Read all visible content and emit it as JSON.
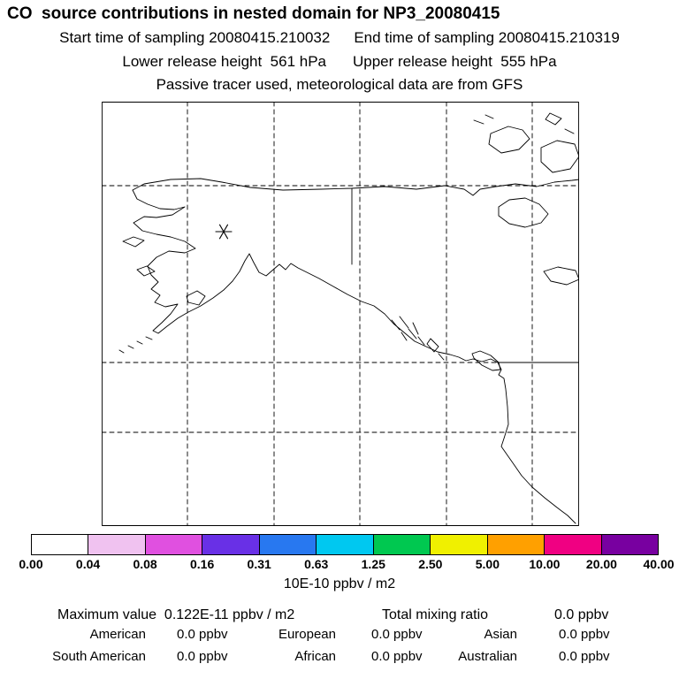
{
  "header": {
    "title": "CO  source contributions in nested domain for NP3_20080415",
    "line2_left": "Start time of sampling 20080415.210032",
    "line2_right": "End time of sampling 20080415.210319",
    "line3_left": "Lower release height  561 hPa",
    "line3_right": "Upper release height  555 hPa",
    "line4": "Passive tracer used, meteorological data are from GFS"
  },
  "map": {
    "marker": "asterisk at sampling/release location over interior Alaska"
  },
  "colorbar": {
    "colors": [
      "#ffffff",
      "#f0c2f0",
      "#e050e0",
      "#6930e6",
      "#2878f0",
      "#00c8f0",
      "#00c850",
      "#f0f000",
      "#ffa000",
      "#f00082",
      "#7800a0"
    ],
    "ticks": [
      "0.00",
      "0.04",
      "0.08",
      "0.16",
      "0.31",
      "0.63",
      "1.25",
      "2.50",
      "5.00",
      "10.00",
      "20.00",
      "40.00"
    ],
    "units": "10E-10 ppbv / m2"
  },
  "stats": {
    "maximum_label": "Maximum value  0.122E-11 ppbv / m2",
    "total_label": "Total mixing ratio",
    "total_value": "0.0 ppbv",
    "regions": [
      {
        "label": "American",
        "value": "0.0 ppbv"
      },
      {
        "label": "European",
        "value": "0.0 ppbv"
      },
      {
        "label": "Asian",
        "value": "0.0 ppbv"
      },
      {
        "label": "South American",
        "value": "0.0 ppbv"
      },
      {
        "label": "African",
        "value": "0.0 ppbv"
      },
      {
        "label": "Australian",
        "value": "0.0 ppbv"
      }
    ]
  },
  "chart_data": {
    "type": "heatmap",
    "subtype": "geographic source-contribution map (Alaska / western North America, lat-lon graticule)",
    "title": "CO source contributions in nested domain for NP3_20080415",
    "colorbar_scale": [
      "0.00",
      "0.04",
      "0.08",
      "0.16",
      "0.31",
      "0.63",
      "1.25",
      "2.50",
      "5.00",
      "10.00",
      "20.00",
      "40.00"
    ],
    "colorbar_units": "10E-10 ppbv / m2",
    "field": "no colored contours plotted; field effectively zero everywhere",
    "marker": {
      "symbol": "asterisk",
      "meaning": "sampling/release location"
    },
    "maximum_value": "0.122E-11 ppbv / m2",
    "total_mixing_ratio_ppbv": "0.0",
    "contributions_ppbv": {
      "American": "0.0",
      "European": "0.0",
      "Asian": "0.0",
      "South American": "0.0",
      "African": "0.0",
      "Australian": "0.0"
    }
  }
}
